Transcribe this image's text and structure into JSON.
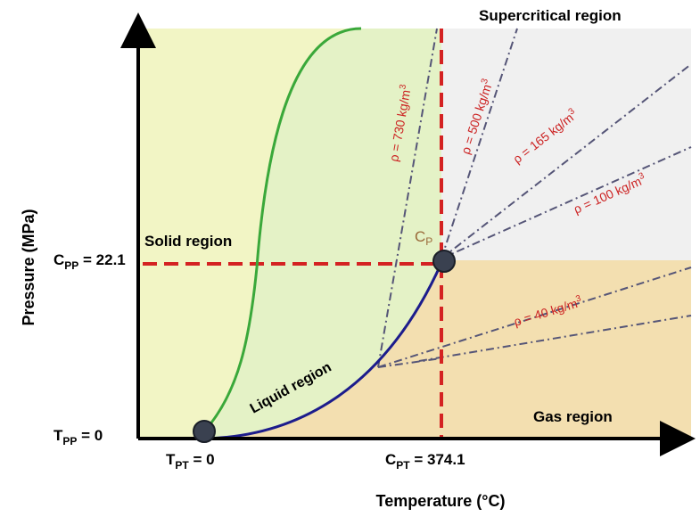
{
  "axes": {
    "x_title": "Temperature (°C)",
    "y_title": "Pressure (MPa)"
  },
  "ticks": {
    "tpp_main": "T",
    "tpp_sub": "PP",
    "tpp_val": " = 0",
    "cpp_main": "C",
    "cpp_sub": "PP",
    "cpp_val": " = 22.1",
    "tpt_main": "T",
    "tpt_sub": "PT",
    "tpt_val": " = 0",
    "cpt_main": "C",
    "cpt_sub": "PT",
    "cpt_val": " = 374.1"
  },
  "regions": {
    "solid": "Solid region",
    "liquid": "Liquid region",
    "gas": "Gas region",
    "supercritical": "Supercritical region"
  },
  "points": {
    "critical_main": "C",
    "critical_sub": "P"
  },
  "isochores": [
    {
      "label": "ρ = 730 kg/m",
      "sup": "3"
    },
    {
      "label": "ρ = 500 kg/m",
      "sup": "3"
    },
    {
      "label": "ρ = 165 kg/m",
      "sup": "3"
    },
    {
      "label": "ρ = 100 kg/m",
      "sup": "3"
    },
    {
      "label": "ρ = 40 kg/m",
      "sup": "3"
    }
  ],
  "colors": {
    "solid_fill": "#f2f5c5",
    "liquid_fill": "#e4f2c6",
    "gas_fill": "#f3dfb0",
    "supercritical_fill": "#f0f0f0",
    "melting_curve": "#3aa83a",
    "vapor_curve": "#1c1c8c",
    "dashed_critical": "#d42222",
    "isochore_line": "#555577",
    "isochore_label": "#cc2222",
    "critical_label": "#9a6a3a"
  }
}
